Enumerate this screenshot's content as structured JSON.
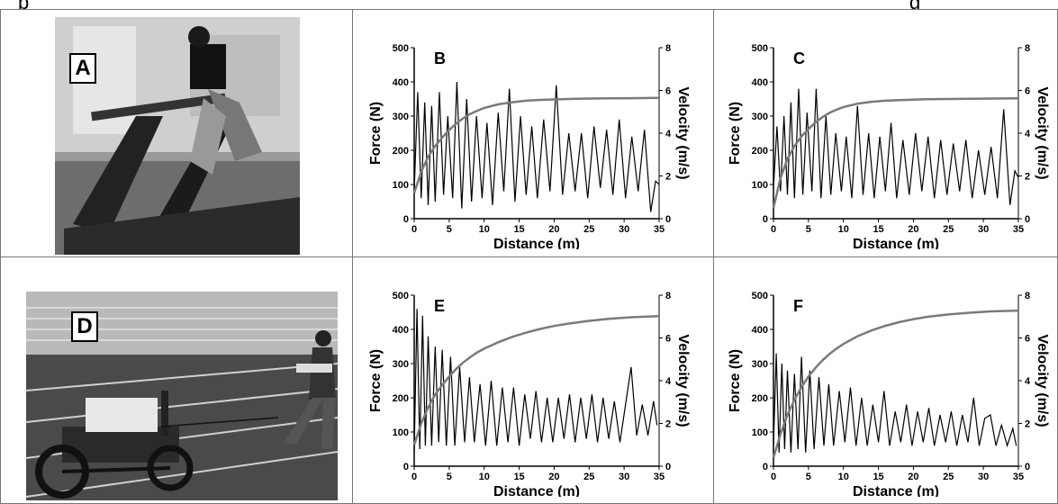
{
  "header_fragments": {
    "left": "p",
    "middle": "",
    "right": "g"
  },
  "panels": {
    "A": {
      "label": "A"
    },
    "D": {
      "label": "D"
    }
  },
  "colors": {
    "force": "#000000",
    "velocity": "#7a7a7a",
    "border": "#777777"
  },
  "chart_data": [
    {
      "panel": "B",
      "type": "line",
      "xlabel": "Distance (m)",
      "ylabel": "Force (N)",
      "y2label": "Velocity (m/s)",
      "xlim": [
        0,
        35
      ],
      "ylim": [
        0,
        500
      ],
      "y2lim": [
        0,
        8
      ],
      "xticks": [
        0,
        5,
        10,
        15,
        20,
        25,
        30,
        35
      ],
      "yticks": [
        0,
        100,
        200,
        300,
        400,
        500
      ],
      "y2ticks": [
        0,
        2,
        4,
        6,
        8
      ],
      "series": [
        {
          "axis": "left",
          "x": [
            0,
            0.5,
            1,
            1.5,
            2,
            2.5,
            3,
            3.6,
            4.2,
            4.8,
            5.5,
            6.1,
            6.8,
            7.5,
            8.2,
            8.9,
            9.7,
            10.4,
            11.2,
            12,
            12.8,
            13.6,
            14.4,
            15.2,
            16,
            16.8,
            17.6,
            18.5,
            19.4,
            20.3,
            21.2,
            22.1,
            23,
            23.9,
            24.8,
            25.7,
            26.6,
            27.5,
            28.4,
            29.3,
            30.2,
            31.1,
            32,
            32.9,
            33.8,
            34.5,
            35
          ],
          "values": [
            80,
            370,
            60,
            340,
            40,
            330,
            50,
            370,
            70,
            300,
            60,
            400,
            30,
            350,
            50,
            300,
            60,
            280,
            40,
            310,
            80,
            380,
            50,
            300,
            70,
            270,
            60,
            290,
            80,
            390,
            70,
            250,
            80,
            250,
            60,
            270,
            90,
            260,
            70,
            290,
            60,
            240,
            80,
            260,
            20,
            110,
            100
          ]
        },
        {
          "axis": "right",
          "x": [
            0,
            1,
            2,
            3,
            4,
            5,
            6,
            7,
            8,
            9,
            10,
            12,
            14,
            16,
            18,
            20,
            22,
            25,
            28,
            31,
            35
          ],
          "values": [
            1.2,
            2.2,
            2.9,
            3.4,
            3.8,
            4.15,
            4.45,
            4.7,
            4.9,
            5.05,
            5.18,
            5.35,
            5.45,
            5.52,
            5.56,
            5.58,
            5.6,
            5.62,
            5.63,
            5.64,
            5.65
          ]
        }
      ]
    },
    {
      "panel": "C",
      "type": "line",
      "xlabel": "Distance (m)",
      "ylabel": "Force (N)",
      "y2label": "Velocity (m/s)",
      "xlim": [
        0,
        35
      ],
      "ylim": [
        0,
        500
      ],
      "y2lim": [
        0,
        8
      ],
      "xticks": [
        0,
        5,
        10,
        15,
        20,
        25,
        30,
        35
      ],
      "yticks": [
        0,
        100,
        200,
        300,
        400,
        500
      ],
      "y2ticks": [
        0,
        2,
        4,
        6,
        8
      ],
      "series": [
        {
          "axis": "left",
          "x": [
            0,
            0.5,
            1,
            1.5,
            2,
            2.5,
            3,
            3.6,
            4.2,
            4.8,
            5.5,
            6.1,
            6.8,
            7.5,
            8.2,
            8.9,
            9.7,
            10.4,
            11.2,
            12,
            12.8,
            13.6,
            14.4,
            15.2,
            16,
            16.8,
            17.6,
            18.5,
            19.4,
            20.3,
            21.2,
            22.1,
            23,
            23.9,
            24.8,
            25.7,
            26.6,
            27.5,
            28.4,
            29.3,
            30.2,
            31.1,
            32,
            32.9,
            33.8,
            34.5,
            35
          ],
          "values": [
            90,
            270,
            80,
            300,
            70,
            340,
            60,
            380,
            70,
            310,
            80,
            380,
            60,
            300,
            70,
            250,
            80,
            240,
            60,
            330,
            70,
            250,
            60,
            240,
            80,
            280,
            60,
            230,
            70,
            250,
            80,
            240,
            60,
            230,
            70,
            220,
            80,
            230,
            60,
            200,
            70,
            210,
            60,
            320,
            40,
            140,
            120
          ]
        },
        {
          "axis": "right",
          "x": [
            0,
            1,
            2,
            3,
            4,
            5,
            6,
            7,
            8,
            9,
            10,
            12,
            14,
            16,
            18,
            20,
            22,
            25,
            28,
            31,
            35
          ],
          "values": [
            0.5,
            1.9,
            2.8,
            3.4,
            3.85,
            4.2,
            4.5,
            4.75,
            4.95,
            5.1,
            5.22,
            5.38,
            5.47,
            5.52,
            5.55,
            5.57,
            5.59,
            5.6,
            5.61,
            5.62,
            5.63
          ]
        }
      ]
    },
    {
      "panel": "E",
      "type": "line",
      "xlabel": "Distance (m)",
      "ylabel": "Force (N)",
      "y2label": "Velocity (m/s)",
      "xlim": [
        0,
        35
      ],
      "ylim": [
        0,
        500
      ],
      "y2lim": [
        0,
        8
      ],
      "xticks": [
        0,
        5,
        10,
        15,
        20,
        25,
        30,
        35
      ],
      "yticks": [
        0,
        100,
        200,
        300,
        400,
        500
      ],
      "y2ticks": [
        0,
        2,
        4,
        6,
        8
      ],
      "series": [
        {
          "axis": "left",
          "x": [
            0,
            0.4,
            0.8,
            1.2,
            1.6,
            2,
            2.5,
            3,
            3.5,
            4,
            4.6,
            5.2,
            5.8,
            6.5,
            7.2,
            7.9,
            8.6,
            9.4,
            10.2,
            11,
            11.8,
            12.6,
            13.4,
            14.2,
            15,
            15.8,
            16.6,
            17.4,
            18.2,
            19,
            19.8,
            20.6,
            21.4,
            22.2,
            23,
            23.8,
            24.6,
            25.4,
            26.2,
            27,
            27.8,
            28.6,
            29.4,
            30.2,
            31,
            31.8,
            32.6,
            33.4,
            34.2,
            34.7
          ],
          "values": [
            40,
            460,
            50,
            440,
            60,
            380,
            60,
            350,
            70,
            340,
            60,
            320,
            60,
            290,
            70,
            260,
            70,
            240,
            60,
            250,
            60,
            230,
            70,
            230,
            60,
            210,
            80,
            220,
            70,
            200,
            70,
            200,
            80,
            210,
            70,
            200,
            80,
            210,
            70,
            200,
            80,
            190,
            70,
            180,
            290,
            90,
            180,
            90,
            190,
            120
          ]
        },
        {
          "axis": "right",
          "x": [
            0,
            1,
            2,
            3,
            4,
            5,
            6,
            7,
            8,
            9,
            10,
            12,
            14,
            16,
            18,
            20,
            22,
            25,
            28,
            31,
            35
          ],
          "values": [
            1.0,
            2.0,
            2.75,
            3.35,
            3.8,
            4.2,
            4.55,
            4.85,
            5.1,
            5.32,
            5.5,
            5.8,
            6.05,
            6.25,
            6.42,
            6.56,
            6.67,
            6.8,
            6.9,
            6.97,
            7.02
          ]
        }
      ]
    },
    {
      "panel": "F",
      "type": "line",
      "xlabel": "Distance (m)",
      "ylabel": "Force (N)",
      "y2label": "Velocity (m/s)",
      "xlim": [
        0,
        35
      ],
      "ylim": [
        0,
        500
      ],
      "y2lim": [
        0,
        8
      ],
      "xticks": [
        0,
        5,
        10,
        15,
        20,
        25,
        30,
        35
      ],
      "yticks": [
        0,
        100,
        200,
        300,
        400,
        500
      ],
      "y2ticks": [
        0,
        2,
        4,
        6,
        8
      ],
      "series": [
        {
          "axis": "left",
          "x": [
            0,
            0.4,
            0.8,
            1.2,
            1.6,
            2,
            2.5,
            3,
            3.5,
            4,
            4.6,
            5.2,
            5.8,
            6.5,
            7.2,
            7.9,
            8.6,
            9.4,
            10.2,
            11,
            11.8,
            12.6,
            13.4,
            14.2,
            15,
            15.8,
            16.6,
            17.4,
            18.2,
            19,
            19.8,
            20.6,
            21.4,
            22.2,
            23,
            23.8,
            24.6,
            25.4,
            26.2,
            27,
            27.8,
            28.6,
            29.4,
            30.2,
            31,
            31.8,
            32.6,
            33.4,
            34.2,
            34.7
          ],
          "values": [
            60,
            330,
            40,
            300,
            50,
            280,
            40,
            270,
            50,
            320,
            40,
            280,
            50,
            260,
            60,
            240,
            60,
            220,
            70,
            230,
            60,
            200,
            60,
            180,
            70,
            220,
            60,
            160,
            70,
            180,
            60,
            160,
            70,
            170,
            60,
            150,
            70,
            160,
            60,
            150,
            70,
            200,
            60,
            140,
            150,
            60,
            120,
            60,
            110,
            60
          ]
        },
        {
          "axis": "right",
          "x": [
            0,
            1,
            2,
            3,
            4,
            5,
            6,
            7,
            8,
            9,
            10,
            12,
            14,
            16,
            18,
            20,
            22,
            25,
            28,
            31,
            35
          ],
          "values": [
            0.4,
            1.5,
            2.4,
            3.1,
            3.7,
            4.2,
            4.6,
            4.95,
            5.25,
            5.5,
            5.72,
            6.08,
            6.35,
            6.57,
            6.74,
            6.88,
            6.99,
            7.1,
            7.18,
            7.24,
            7.28
          ]
        }
      ]
    }
  ]
}
